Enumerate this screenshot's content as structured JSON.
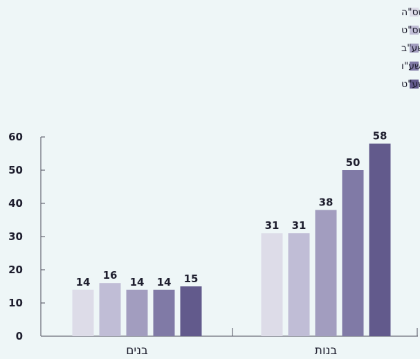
{
  "chart_data": {
    "type": "bar",
    "categories": [
      "בנים",
      "בנות"
    ],
    "series": [
      {
        "name": "תשס\"ה",
        "color": "#dddce8",
        "values": [
          14,
          31
        ]
      },
      {
        "name": "תשס\"ט",
        "color": "#c0bdd6",
        "values": [
          16,
          31
        ]
      },
      {
        "name": "תשע\"ב",
        "color": "#a29dbf",
        "values": [
          14,
          38
        ]
      },
      {
        "name": "תשע\"ו",
        "color": "#807aa6",
        "values": [
          14,
          50
        ]
      },
      {
        "name": "תשע\"ט",
        "color": "#625a8c",
        "values": [
          15,
          58
        ]
      }
    ],
    "ylim": [
      0,
      60
    ],
    "yticks": [
      0,
      10,
      20,
      30,
      40,
      50,
      60
    ],
    "grid": false,
    "legend": "top-right",
    "title": "",
    "xlabel": "",
    "ylabel": ""
  }
}
